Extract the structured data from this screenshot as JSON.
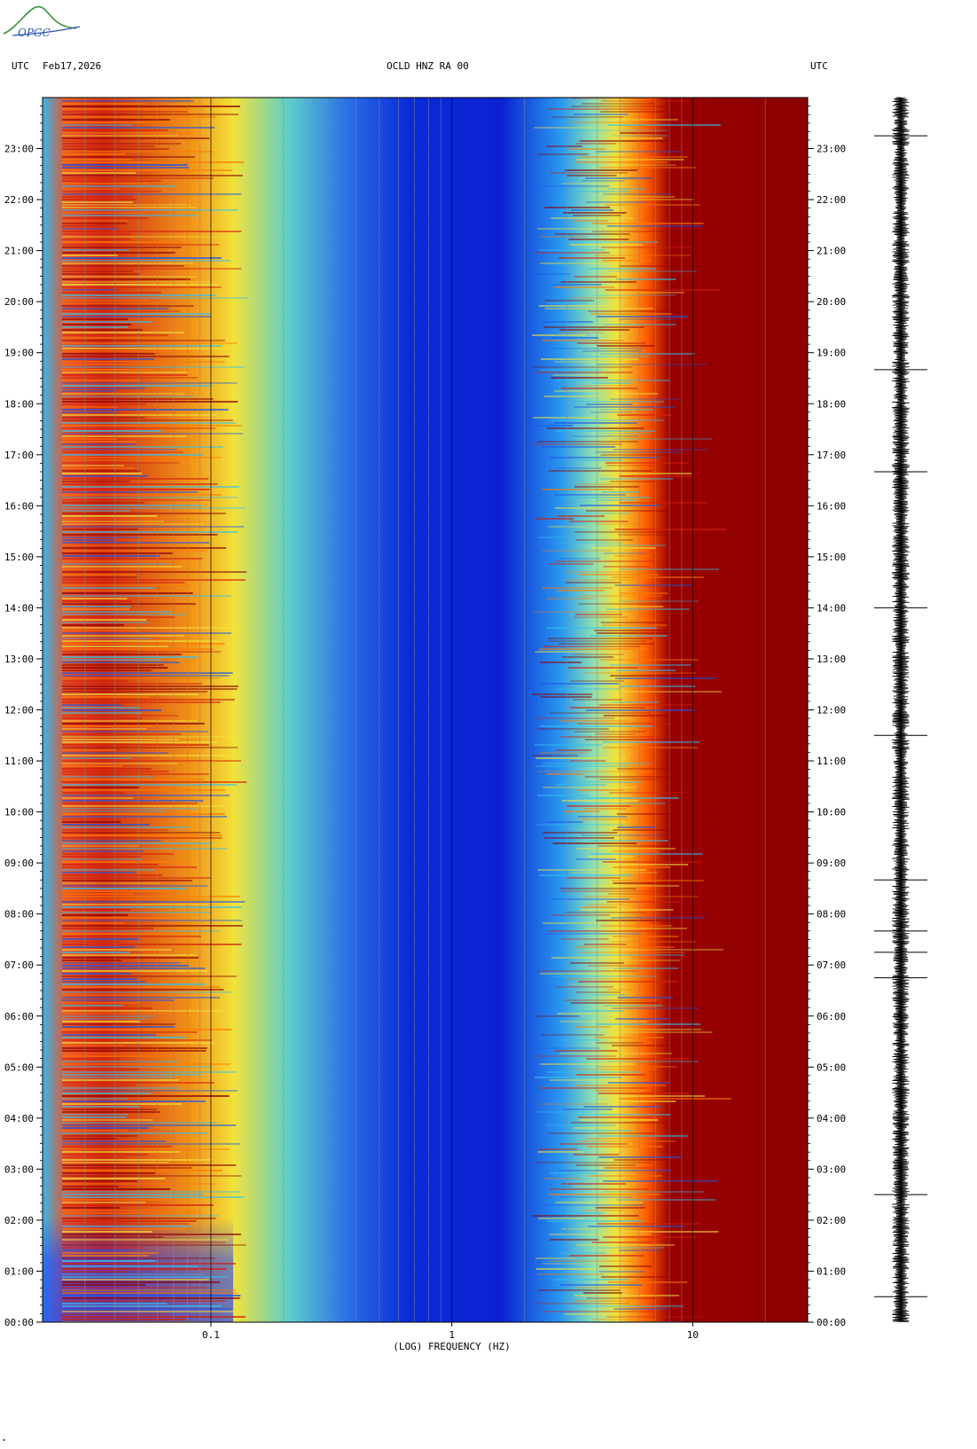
{
  "header": {
    "left_tz": "UTC",
    "date": "Feb17,2026",
    "station": "OCLD HNZ RA 00",
    "right_tz": "UTC"
  },
  "logo": {
    "text": "OPGC",
    "icon": "opgc-logo-icon"
  },
  "colors": {
    "low": "#0a1fd2",
    "mid_low": "#2aa8f0",
    "mid": "#f2ee3a",
    "mid_high": "#ff6a00",
    "high": "#8b0000",
    "waveform": "#000000"
  },
  "chart_data": {
    "type": "heatmap",
    "title": "OCLD HNZ RA 00",
    "xlabel": "(LOG) FREQUENCY (HZ)",
    "ylabel": "UTC",
    "x_scale": "log",
    "xlim": [
      0.02,
      30
    ],
    "x_ticks": [
      {
        "value": 0.1,
        "label": "0.1"
      },
      {
        "value": 1,
        "label": "1"
      },
      {
        "value": 10,
        "label": "10"
      }
    ],
    "ylim": [
      "00:00",
      "24:00"
    ],
    "y_ticks": [
      "00:00",
      "01:00",
      "02:00",
      "03:00",
      "04:00",
      "05:00",
      "06:00",
      "07:00",
      "08:00",
      "09:00",
      "10:00",
      "11:00",
      "12:00",
      "13:00",
      "14:00",
      "15:00",
      "16:00",
      "17:00",
      "18:00",
      "19:00",
      "20:00",
      "21:00",
      "22:00",
      "23:00"
    ],
    "grid": true,
    "colormap": "jet (blue = low power, dark red = high power)",
    "features": [
      {
        "band_hz": [
          0.025,
          0.1
        ],
        "description": "high power band (red/orange), strongest 08:00-16:00 and 20:00-24:00"
      },
      {
        "band_hz": [
          0.4,
          2
        ],
        "description": "low power trough (blue) across the whole day"
      },
      {
        "band_hz": [
          6,
          30
        ],
        "description": "saturated high power (dark red), daytime onset shifts to lower frequency ~05:00-19:00"
      }
    ]
  },
  "waveform": {
    "label": "seismogram",
    "spikes_utc": [
      "00:30",
      "02:30",
      "06:45",
      "07:15",
      "07:40",
      "08:40",
      "11:30",
      "14:00",
      "16:40",
      "18:40",
      "23:15"
    ]
  }
}
